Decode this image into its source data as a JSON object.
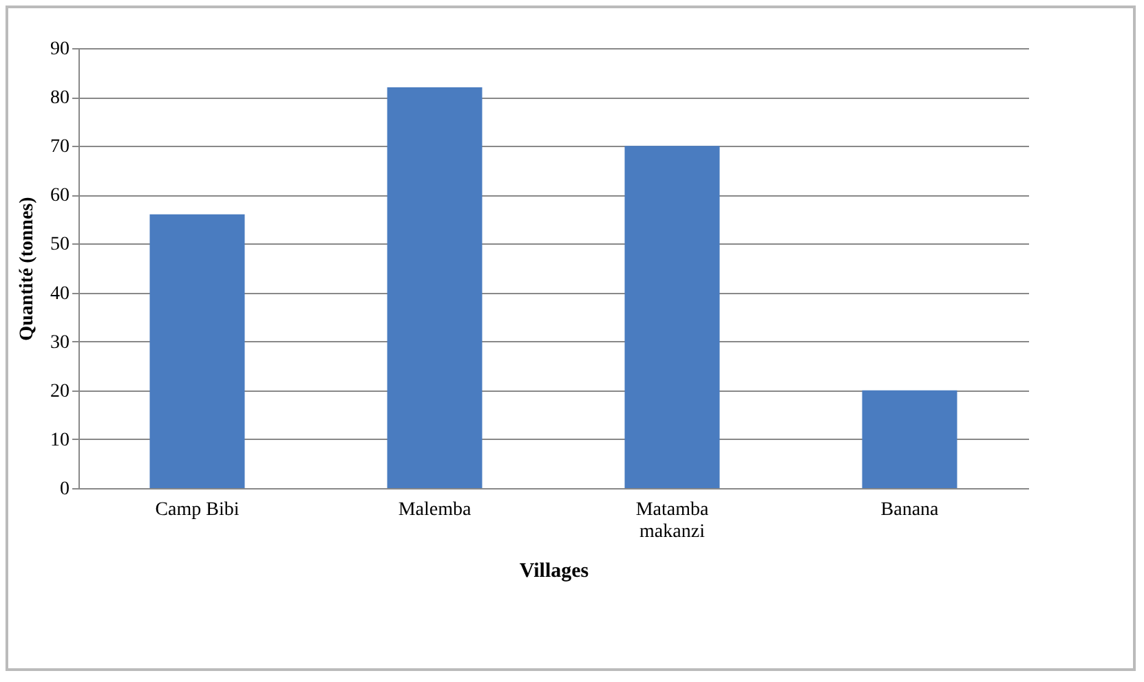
{
  "chart_data": {
    "type": "bar",
    "xlabel": "Villages",
    "ylabel": "Quantité (tonnes)",
    "categories": [
      "Camp Bibi",
      "Malemba",
      "Matamba makanzi",
      "Banana"
    ],
    "values": [
      56,
      82,
      70,
      20
    ],
    "color": "#4a7cc0",
    "ylim": [
      0,
      90
    ],
    "yticks": [
      0,
      10,
      20,
      30,
      40,
      50,
      60,
      70,
      80,
      90
    ],
    "grid": "y"
  }
}
